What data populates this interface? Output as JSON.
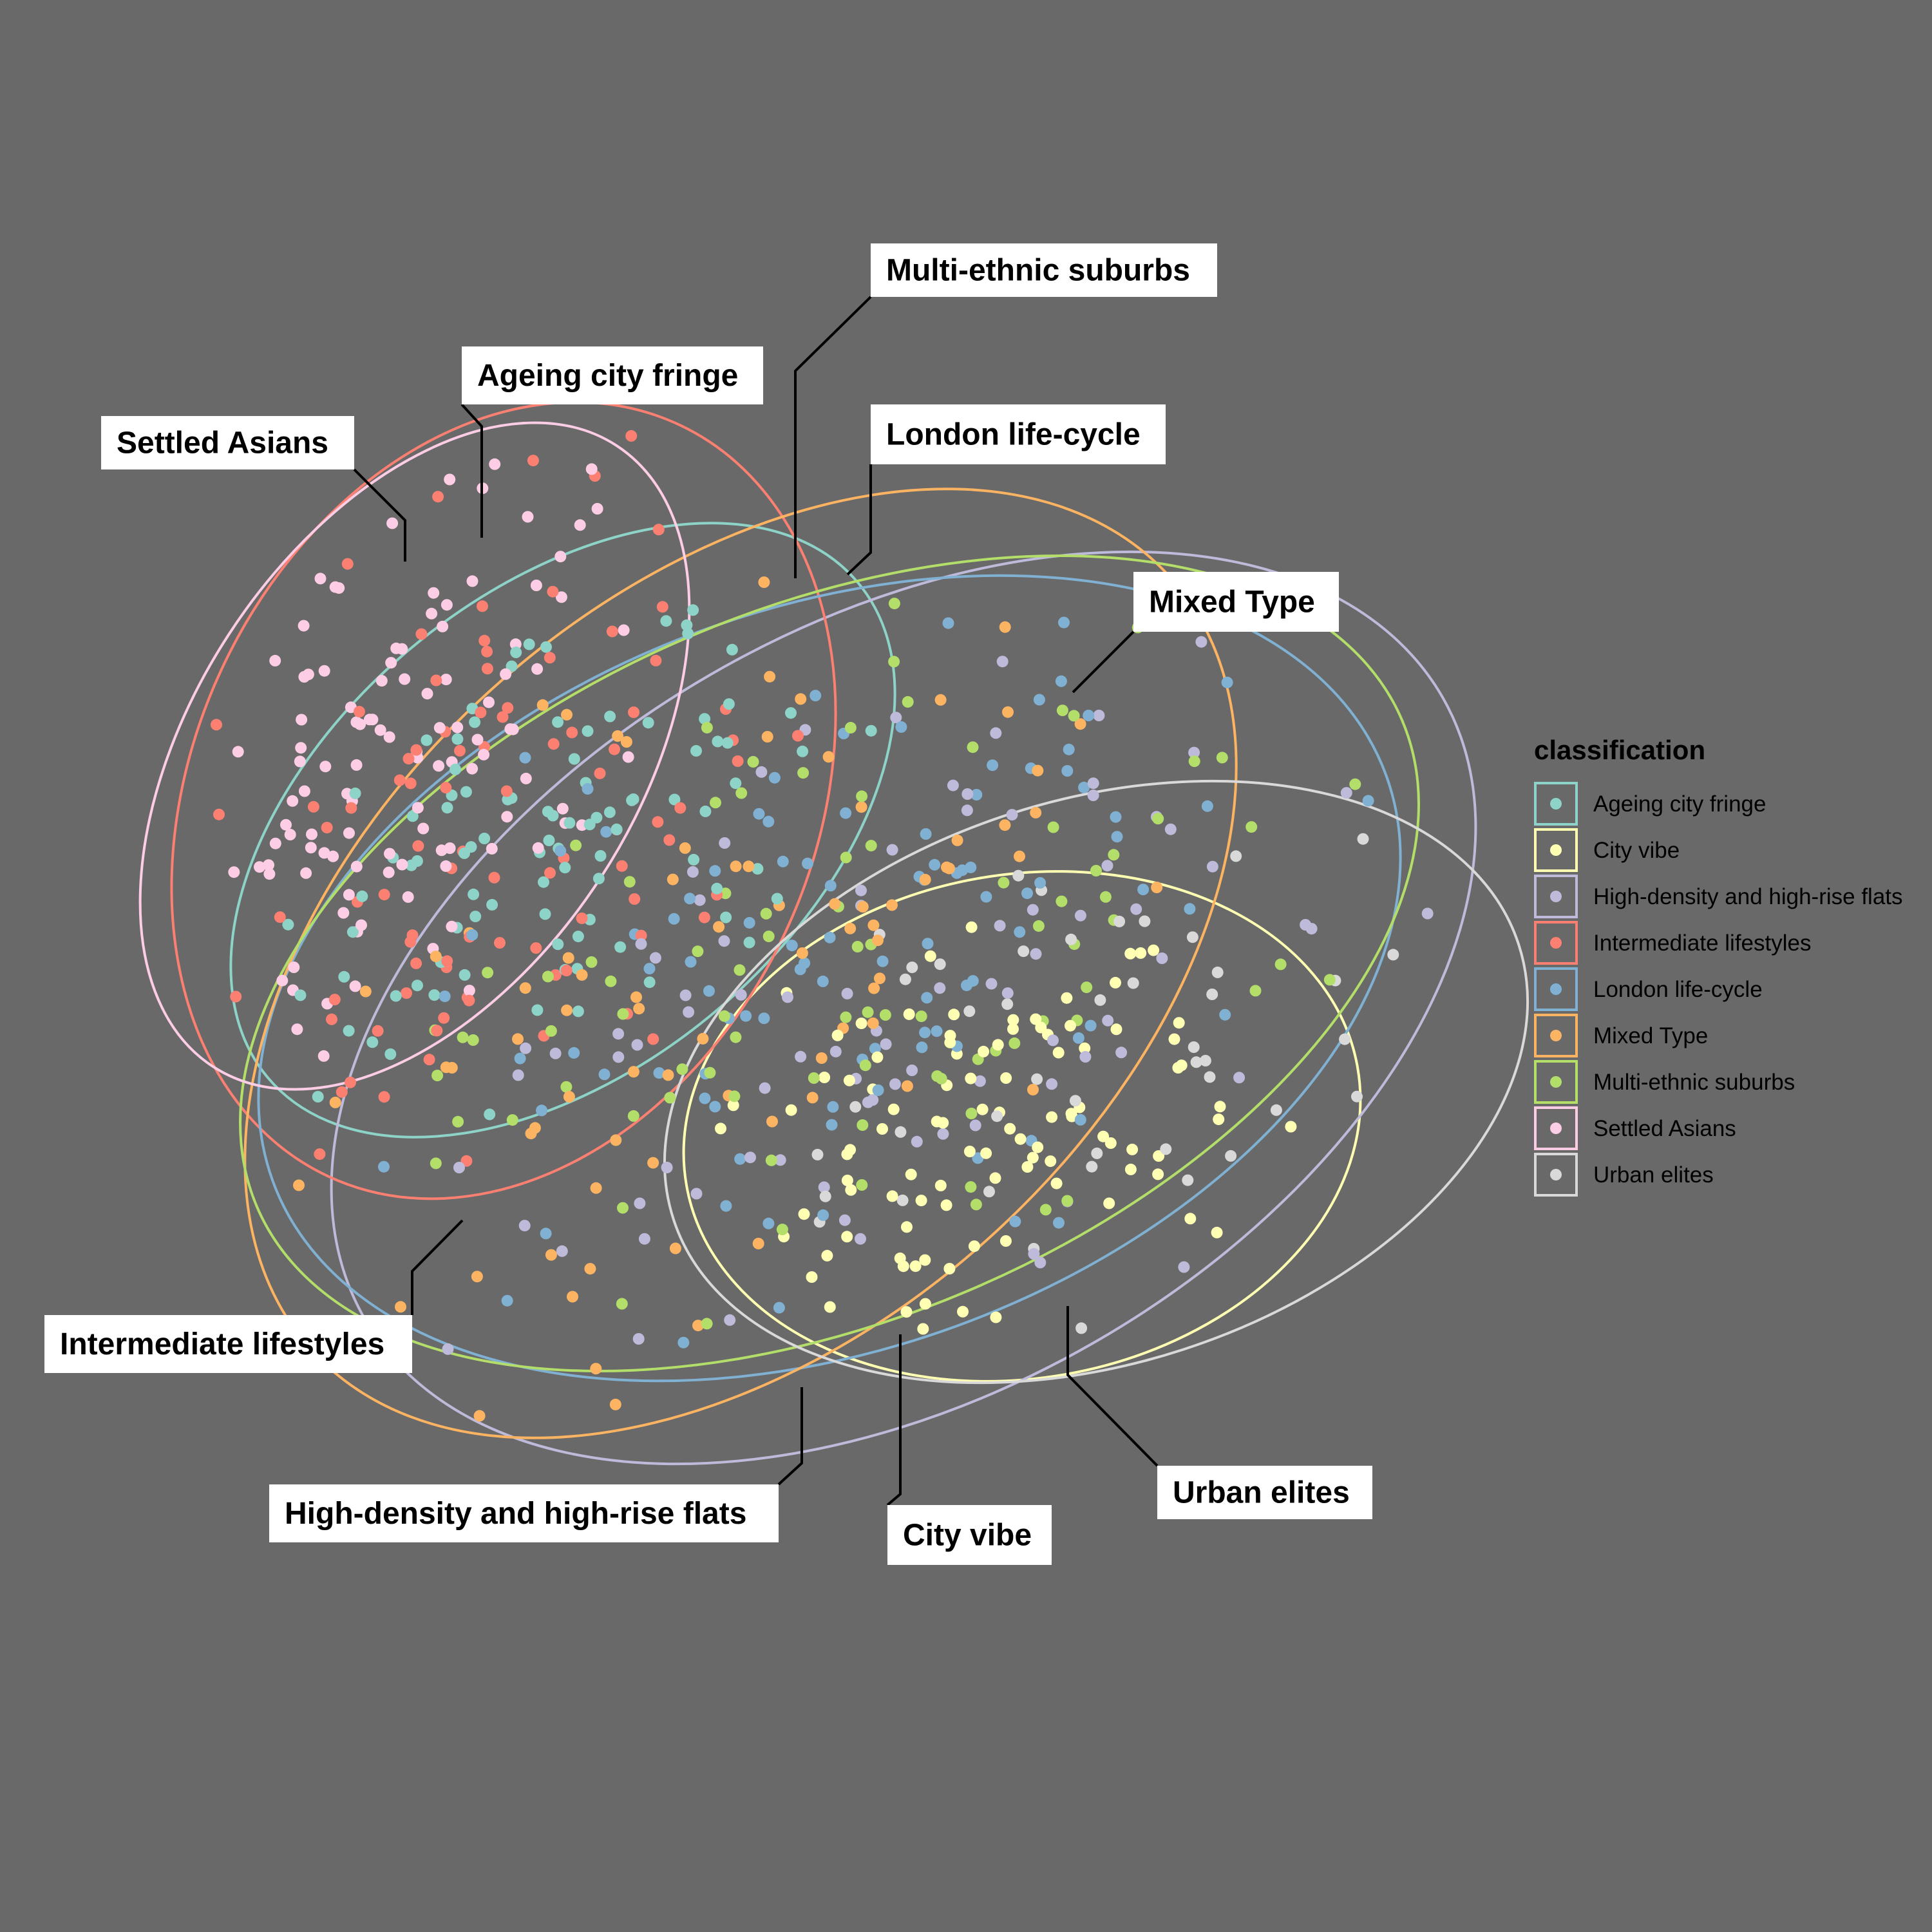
{
  "chart_data": {
    "type": "scatter",
    "title": "",
    "xlabel": "",
    "ylabel": "",
    "xlim": [
      0,
      100
    ],
    "ylim": [
      0,
      100
    ],
    "grid": false,
    "legend_position": "right",
    "legend_title": "classification",
    "ellipse_level": "95%",
    "series": [
      {
        "name": "Ageing city fringe",
        "color": "#8DD3C7",
        "center": [
          38,
          57
        ],
        "radii": [
          26,
          16
        ],
        "angle": 40,
        "n": 95
      },
      {
        "name": "City vibe",
        "color": "#FFFFB3",
        "center": [
          69,
          37
        ],
        "radii": [
          23,
          17
        ],
        "angle": 10,
        "n": 100
      },
      {
        "name": "High-density and high-rise flats",
        "color": "#BEBADA",
        "center": [
          61,
          45
        ],
        "radii": [
          42,
          26
        ],
        "angle": 30,
        "n": 90
      },
      {
        "name": "Intermediate lifestyles",
        "color": "#FB8072",
        "center": [
          34,
          59
        ],
        "radii": [
          28,
          21
        ],
        "angle": 65,
        "n": 90
      },
      {
        "name": "London life-cycle",
        "color": "#80B1D3",
        "center": [
          56,
          47
        ],
        "radii": [
          40,
          25
        ],
        "angle": 20,
        "n": 100
      },
      {
        "name": "Mixed Type",
        "color": "#FDB462",
        "center": [
          50,
          48
        ],
        "radii": [
          39,
          25
        ],
        "angle": 42,
        "n": 80
      },
      {
        "name": "Multi-ethnic suburbs",
        "color": "#B3DE69",
        "center": [
          56,
          48
        ],
        "radii": [
          42,
          24
        ],
        "angle": 23,
        "n": 90
      },
      {
        "name": "Settled Asians",
        "color": "#FCCDE5",
        "center": [
          28,
          62
        ],
        "radii": [
          25,
          15
        ],
        "angle": 57,
        "n": 110
      },
      {
        "name": "Urban elites",
        "color": "#D9D9D9",
        "center": [
          74,
          40
        ],
        "radii": [
          30,
          19
        ],
        "angle": 18,
        "n": 45
      }
    ]
  },
  "annotations": [
    {
      "text": "Multi-ethnic suburbs"
    },
    {
      "text": "Ageing city fringe"
    },
    {
      "text": "London life-cycle"
    },
    {
      "text": "Settled Asians"
    },
    {
      "text": "Mixed Type"
    },
    {
      "text": "Intermediate lifestyles"
    },
    {
      "text": "High-density and high-rise flats"
    },
    {
      "text": "City vibe"
    },
    {
      "text": "Urban elites"
    }
  ]
}
